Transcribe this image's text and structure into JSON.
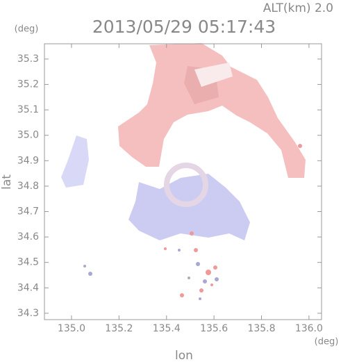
{
  "chart_data": {
    "type": "map",
    "title": "2013/05/29 05:17:43",
    "annotation": "ALT(km)  2.0",
    "x_label": "lon",
    "y_label": "lat",
    "x_unit": "(deg)",
    "y_unit": "(deg)",
    "xlim": [
      134.886,
      136.053
    ],
    "ylim": [
      34.275,
      35.36
    ],
    "xticks": [
      {
        "value": 135.0,
        "label": "135.0"
      },
      135.2,
      135.4,
      135.6,
      135.8,
      {
        "value": 136.0,
        "label": "136.0"
      }
    ],
    "yticks": [
      35.3,
      35.2,
      35.1,
      {
        "value": 35.0,
        "label": "35.0"
      },
      34.9,
      34.8,
      34.7,
      34.6,
      34.5,
      34.4,
      34.3
    ]
  }
}
